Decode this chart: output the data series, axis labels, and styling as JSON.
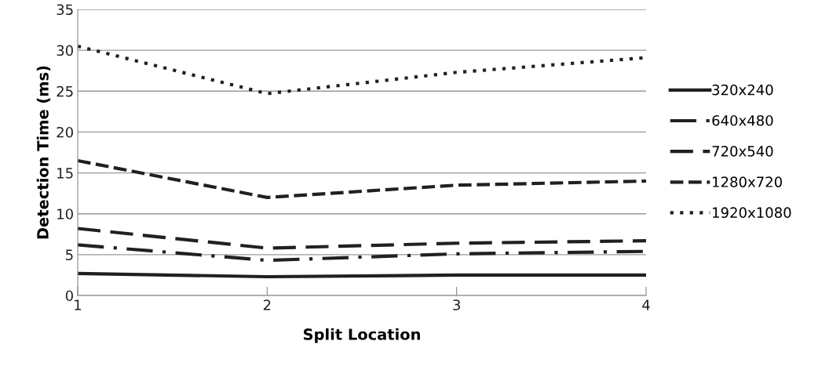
{
  "chart_data": {
    "type": "line",
    "xlabel": "Split Location",
    "ylabel": "Detection Time (ms)",
    "x": [
      1,
      2,
      3,
      4
    ],
    "xlim": [
      1,
      4
    ],
    "xticks": [
      1,
      2,
      3,
      4
    ],
    "ylim": [
      0,
      35
    ],
    "yticks": [
      0,
      5,
      10,
      15,
      20,
      25,
      30,
      35
    ],
    "grid": "y",
    "legend": "right",
    "marker": "none",
    "series": [
      {
        "name": "320x240",
        "color": "#231f20",
        "line_style": "solid",
        "values": [
          2.7,
          2.3,
          2.5,
          2.5
        ]
      },
      {
        "name": "640x480",
        "color": "#231f20",
        "line_style": "dashdot",
        "values": [
          6.2,
          4.3,
          5.1,
          5.4
        ]
      },
      {
        "name": "720x540",
        "color": "#231f20",
        "line_style": "longdash",
        "values": [
          8.2,
          5.8,
          6.4,
          6.7
        ]
      },
      {
        "name": "1280x720",
        "color": "#231f20",
        "line_style": "dashed",
        "values": [
          16.5,
          12.0,
          13.5,
          14.0
        ]
      },
      {
        "name": "1920x1080",
        "color": "#231f20",
        "line_style": "dotted",
        "values": [
          30.5,
          24.7,
          27.3,
          29.1
        ]
      }
    ]
  }
}
